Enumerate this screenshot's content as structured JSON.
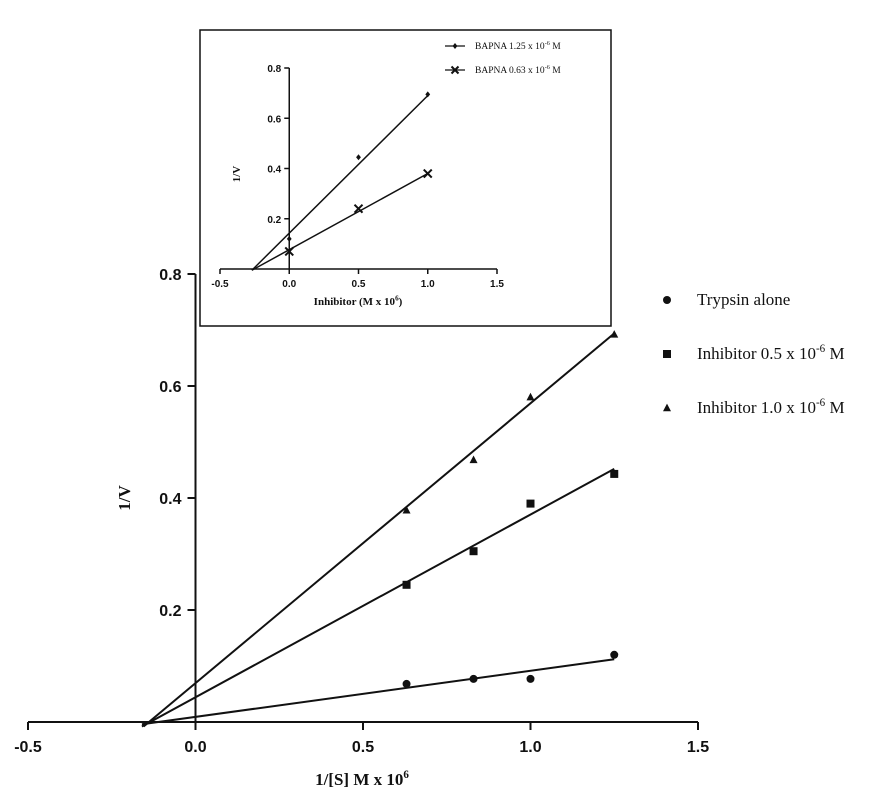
{
  "chart_data": [
    {
      "type": "scatter",
      "title": "",
      "xlabel": "1/[S] M x 10",
      "xlabel_sup": "6",
      "ylabel": "1/V",
      "xlim": [
        -0.5,
        1.5
      ],
      "ylim": [
        0,
        0.8
      ],
      "xticks": [
        "-0.5",
        "0.0",
        "0.5",
        "1.0",
        "1.5"
      ],
      "yticks": [
        "0.2",
        "0.4",
        "0.6",
        "0.8"
      ],
      "grid": false,
      "legend_position": "right",
      "series": [
        {
          "name": "Trypsin alone",
          "legend_text": "Trypsin alone",
          "legend_sup": "",
          "legend_tail": "",
          "marker": "circle",
          "x": [
            0.63,
            0.83,
            1.0,
            1.25
          ],
          "y": [
            0.068,
            0.077,
            0.077,
            0.12
          ],
          "fit_line": {
            "x": [
              -0.16,
              1.25
            ],
            "y": [
              -0.004,
              0.112
            ]
          }
        },
        {
          "name": "Inhibitor 0.5 x 10-6 M",
          "legend_text": "Inhibitor 0.5 x 10",
          "legend_sup": "-6",
          "legend_tail": " M",
          "marker": "square",
          "x": [
            0.63,
            0.83,
            1.0,
            1.25
          ],
          "y": [
            0.245,
            0.305,
            0.39,
            0.443
          ],
          "fit_line": {
            "x": [
              -0.16,
              1.25
            ],
            "y": [
              -0.008,
              0.452
            ]
          }
        },
        {
          "name": "Inhibitor 1.0 x 10-6 M",
          "legend_text": "Inhibitor 1.0 x 10",
          "legend_sup": "-6",
          "legend_tail": " M",
          "marker": "triangle",
          "x": [
            0.63,
            0.83,
            1.0,
            1.25
          ],
          "y": [
            0.378,
            0.468,
            0.58,
            0.692
          ],
          "fit_line": {
            "x": [
              -0.155,
              1.25
            ],
            "y": [
              -0.008,
              0.694
            ]
          }
        }
      ]
    },
    {
      "type": "scatter",
      "title": "",
      "xlabel": "Inhibitor (M x 10",
      "xlabel_sup": "6",
      "xlabel_tail": ")",
      "ylabel": "1/V",
      "xlim": [
        -0.5,
        1.5
      ],
      "ylim": [
        0,
        0.8
      ],
      "xticks": [
        "-0.5",
        "0.0",
        "0.5",
        "1.0",
        "1.5"
      ],
      "yticks": [
        "0.2",
        "0.4",
        "0.6",
        "0.8"
      ],
      "grid": false,
      "legend_position": "top-right",
      "series": [
        {
          "name": "BAPNA 1.25 x 10-6 M",
          "legend_text": "BAPNA 1.25 x 10",
          "legend_sup": "-6",
          "legend_tail": " M",
          "marker": "diamond",
          "x": [
            0.0,
            0.5,
            1.0
          ],
          "y": [
            0.12,
            0.445,
            0.695
          ],
          "fit_line": {
            "x": [
              -0.27,
              1.0
            ],
            "y": [
              -0.005,
              0.69
            ]
          }
        },
        {
          "name": "BAPNA 0.63 x 10-6 M",
          "legend_text": "BAPNA 0.63 x 10",
          "legend_sup": "-6",
          "legend_tail": " M",
          "marker": "x",
          "x": [
            0.0,
            0.5,
            1.0
          ],
          "y": [
            0.07,
            0.24,
            0.38
          ],
          "fit_line": {
            "x": [
              -0.27,
              1.0
            ],
            "y": [
              -0.005,
              0.38
            ]
          }
        }
      ]
    }
  ]
}
